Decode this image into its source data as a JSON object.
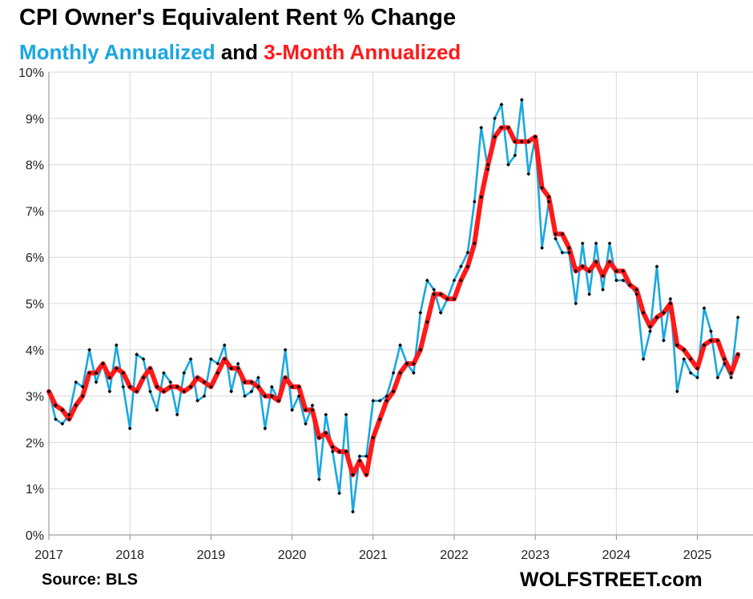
{
  "title": "CPI Owner's Equivalent Rent % Change",
  "subtitle": {
    "monthly": "Monthly Annualized",
    "and": "and",
    "three_month": "3-Month Annualized"
  },
  "source": "Source: BLS",
  "brand": "WOLFSTREET.com",
  "colors": {
    "monthly": "#1aa7e0",
    "three_month": "#ff1a1a",
    "marker": "#000000",
    "grid": "#d9d9d9"
  },
  "chart_data": {
    "type": "line",
    "x_start": "2017-01",
    "x_ticks": [
      "2017",
      "2018",
      "2019",
      "2020",
      "2021",
      "2022",
      "2023",
      "2024",
      "2025"
    ],
    "y_ticks": [
      "0%",
      "1%",
      "2%",
      "3%",
      "4%",
      "5%",
      "6%",
      "7%",
      "8%",
      "9%",
      "10%"
    ],
    "ylim": [
      0,
      10
    ],
    "grid": "horizontal and vertical",
    "series": [
      {
        "name": "Monthly Annualized",
        "values": [
          3.1,
          2.5,
          2.4,
          2.6,
          3.3,
          3.2,
          4.0,
          3.3,
          3.7,
          3.1,
          4.1,
          3.2,
          2.3,
          3.9,
          3.8,
          3.1,
          2.7,
          3.5,
          3.3,
          2.6,
          3.5,
          3.8,
          2.9,
          3.0,
          3.8,
          3.7,
          4.1,
          3.1,
          3.7,
          3.0,
          3.1,
          3.4,
          2.3,
          3.2,
          2.9,
          4.0,
          2.7,
          3.0,
          2.4,
          2.8,
          1.2,
          2.6,
          1.8,
          0.9,
          2.6,
          0.5,
          1.7,
          1.7,
          2.9,
          2.9,
          3.0,
          3.5,
          4.1,
          3.7,
          3.5,
          4.8,
          5.5,
          5.3,
          4.8,
          5.1,
          5.5,
          5.8,
          6.1,
          7.2,
          8.8,
          7.9,
          9.0,
          9.3,
          8.0,
          8.2,
          9.4,
          7.8,
          8.6,
          6.2,
          7.2,
          6.4,
          6.1,
          6.1,
          5.0,
          6.3,
          5.2,
          6.3,
          5.3,
          6.3,
          5.5,
          5.5,
          5.4,
          5.2,
          3.8,
          4.4,
          5.8,
          4.2,
          5.1,
          3.1,
          3.8,
          3.5,
          3.4,
          4.9,
          4.4,
          3.4,
          3.7,
          3.4,
          4.7
        ]
      },
      {
        "name": "3-Month Annualized",
        "values": [
          3.1,
          2.8,
          2.7,
          2.5,
          2.8,
          3.0,
          3.5,
          3.5,
          3.7,
          3.4,
          3.6,
          3.5,
          3.2,
          3.1,
          3.4,
          3.6,
          3.2,
          3.1,
          3.2,
          3.2,
          3.1,
          3.2,
          3.4,
          3.3,
          3.2,
          3.5,
          3.8,
          3.6,
          3.6,
          3.3,
          3.3,
          3.2,
          3.0,
          3.0,
          2.9,
          3.4,
          3.2,
          3.2,
          2.7,
          2.7,
          2.1,
          2.2,
          1.9,
          1.8,
          1.8,
          1.3,
          1.6,
          1.3,
          2.1,
          2.5,
          2.9,
          3.1,
          3.5,
          3.7,
          3.7,
          4.0,
          4.6,
          5.2,
          5.2,
          5.1,
          5.1,
          5.5,
          5.8,
          6.3,
          7.3,
          8.0,
          8.6,
          8.8,
          8.8,
          8.5,
          8.5,
          8.5,
          8.6,
          7.5,
          7.3,
          6.5,
          6.5,
          6.2,
          5.7,
          5.8,
          5.7,
          5.9,
          5.6,
          5.9,
          5.7,
          5.7,
          5.4,
          5.3,
          4.8,
          4.5,
          4.7,
          4.8,
          5.0,
          4.1,
          4.0,
          3.8,
          3.6,
          4.1,
          4.2,
          4.2,
          3.8,
          3.5,
          3.9
        ]
      }
    ]
  }
}
